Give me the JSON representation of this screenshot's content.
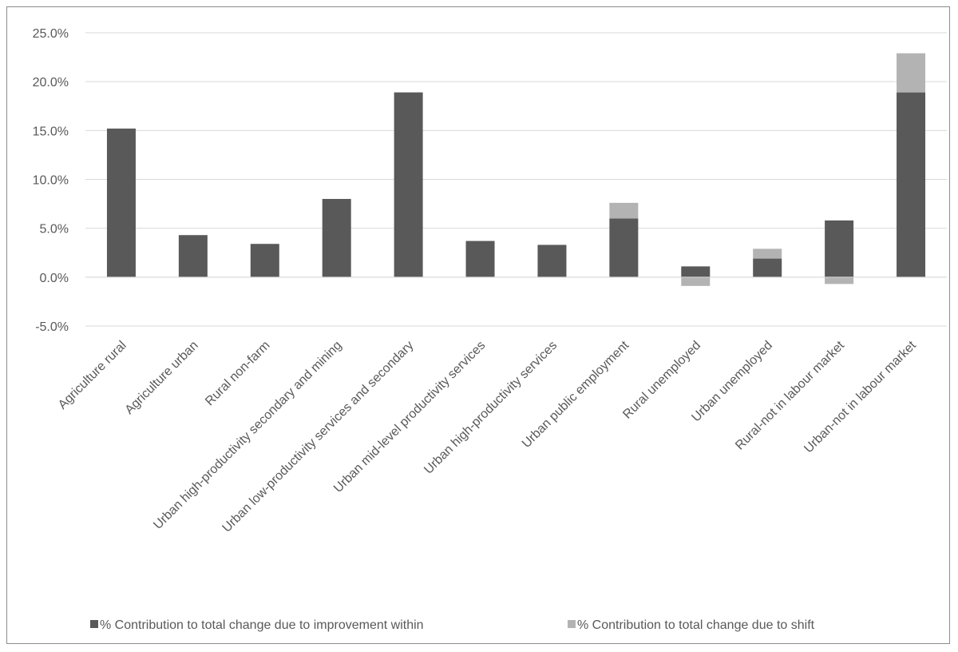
{
  "chart_data": {
    "type": "bar",
    "stacked": true,
    "categories": [
      "Agriculture rural",
      "Agriculture urban",
      "Rural non-farm",
      "Urban high-productivity secondary and mining",
      "Urban low-productivity services and secondary",
      "Urban mid-level productivity services",
      "Urban high-productivity services",
      "Urban public employment",
      "Rural unemployed",
      "Urban unemployed",
      "Rural-not in labour market",
      "Urban-not in labour market"
    ],
    "series": [
      {
        "name": "% Contribution to total change due to improvement within",
        "color": "#595959",
        "values": [
          15.2,
          4.3,
          3.4,
          8.0,
          18.9,
          3.7,
          3.3,
          6.0,
          1.1,
          1.9,
          5.8,
          18.9
        ]
      },
      {
        "name": "% Contribution to total change due to shift",
        "color": "#b3b3b3",
        "values": [
          0.0,
          0.0,
          0.0,
          0.0,
          0.0,
          0.0,
          0.0,
          1.6,
          -0.9,
          1.0,
          -0.7,
          4.0
        ]
      }
    ],
    "ylim": [
      -5,
      25
    ],
    "yticks": [
      "-5.0%",
      "0.0%",
      "5.0%",
      "10.0%",
      "15.0%",
      "20.0%",
      "25.0%"
    ],
    "grid": true,
    "legend_position": "bottom",
    "title": "",
    "xlabel": "",
    "ylabel": ""
  }
}
